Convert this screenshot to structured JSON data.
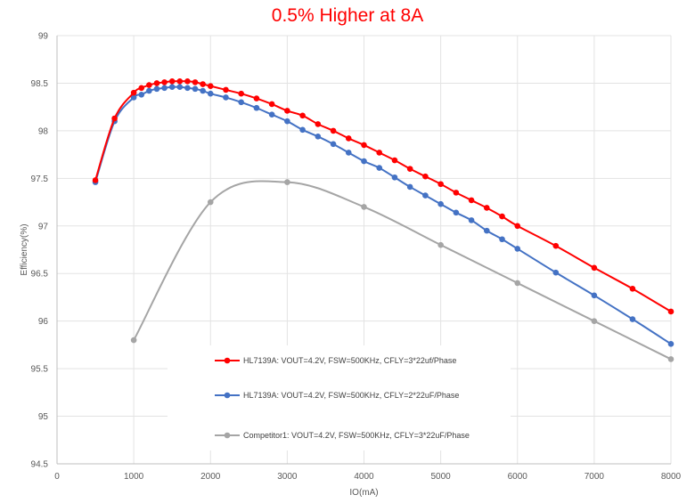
{
  "chart_data": {
    "type": "line",
    "title": "0.5% Higher at 8A",
    "xlabel": "IO(mA)",
    "ylabel": "Efficiency(%)",
    "xlim": [
      0,
      8000
    ],
    "ylim": [
      94.5,
      99
    ],
    "x_ticks": [
      0,
      1000,
      2000,
      3000,
      4000,
      5000,
      6000,
      7000,
      8000
    ],
    "y_ticks": [
      94.5,
      95,
      95.5,
      96,
      96.5,
      97,
      97.5,
      98,
      98.5,
      99
    ],
    "x_tick_labels": [
      "0",
      "1000",
      "2000",
      "3000",
      "4000",
      "5000",
      "6000",
      "7000",
      "8000"
    ],
    "y_tick_labels": [
      "94.5",
      "95",
      "95.5",
      "96",
      "96.5",
      "97",
      "97.5",
      "98",
      "98.5",
      "99"
    ],
    "grid": true,
    "legend_position": "bottom-center inside plot",
    "title_color": "#ff0000",
    "series": [
      {
        "name": "HL7139A: VOUT=4.2V, FSW=500KHz, CFLY=3*22uf/Phase",
        "color": "#ff0000",
        "x": [
          500,
          750,
          1000,
          1100,
          1200,
          1300,
          1400,
          1500,
          1600,
          1700,
          1800,
          1900,
          2000,
          2200,
          2400,
          2600,
          2800,
          3000,
          3200,
          3400,
          3600,
          3800,
          4000,
          4200,
          4400,
          4600,
          4800,
          5000,
          5200,
          5400,
          5600,
          5800,
          6000,
          6500,
          7000,
          7500,
          8000
        ],
        "y": [
          97.48,
          98.13,
          98.4,
          98.45,
          98.48,
          98.5,
          98.51,
          98.52,
          98.52,
          98.52,
          98.51,
          98.49,
          98.47,
          98.43,
          98.39,
          98.34,
          98.28,
          98.21,
          98.16,
          98.07,
          98.0,
          97.92,
          97.85,
          97.77,
          97.69,
          97.6,
          97.52,
          97.44,
          97.35,
          97.27,
          97.19,
          97.1,
          97.0,
          96.79,
          96.56,
          96.34,
          96.1
        ]
      },
      {
        "name": "HL7139A: VOUT=4.2V, FSW=500KHz, CFLY=2*22uF/Phase",
        "color": "#4472c4",
        "x": [
          500,
          750,
          1000,
          1100,
          1200,
          1300,
          1400,
          1500,
          1600,
          1700,
          1800,
          1900,
          2000,
          2200,
          2400,
          2600,
          2800,
          3000,
          3200,
          3400,
          3600,
          3800,
          4000,
          4200,
          4400,
          4600,
          4800,
          5000,
          5200,
          5400,
          5600,
          5800,
          6000,
          6500,
          7000,
          7500,
          8000
        ],
        "y": [
          97.46,
          98.1,
          98.35,
          98.38,
          98.42,
          98.44,
          98.45,
          98.46,
          98.46,
          98.45,
          98.44,
          98.42,
          98.39,
          98.35,
          98.3,
          98.24,
          98.17,
          98.1,
          98.01,
          97.94,
          97.86,
          97.77,
          97.68,
          97.61,
          97.51,
          97.41,
          97.32,
          97.23,
          97.14,
          97.06,
          96.95,
          96.86,
          96.76,
          96.51,
          96.27,
          96.02,
          95.76
        ]
      },
      {
        "name": "Competitor1: VOUT=4.2V, FSW=500KHz, CFLY=3*22uF/Phase",
        "color": "#a5a5a5",
        "x": [
          1000,
          2000,
          3000,
          4000,
          5000,
          6000,
          7000,
          8000
        ],
        "y": [
          95.8,
          97.25,
          97.46,
          97.2,
          96.8,
          96.4,
          96.0,
          95.6
        ]
      }
    ]
  }
}
